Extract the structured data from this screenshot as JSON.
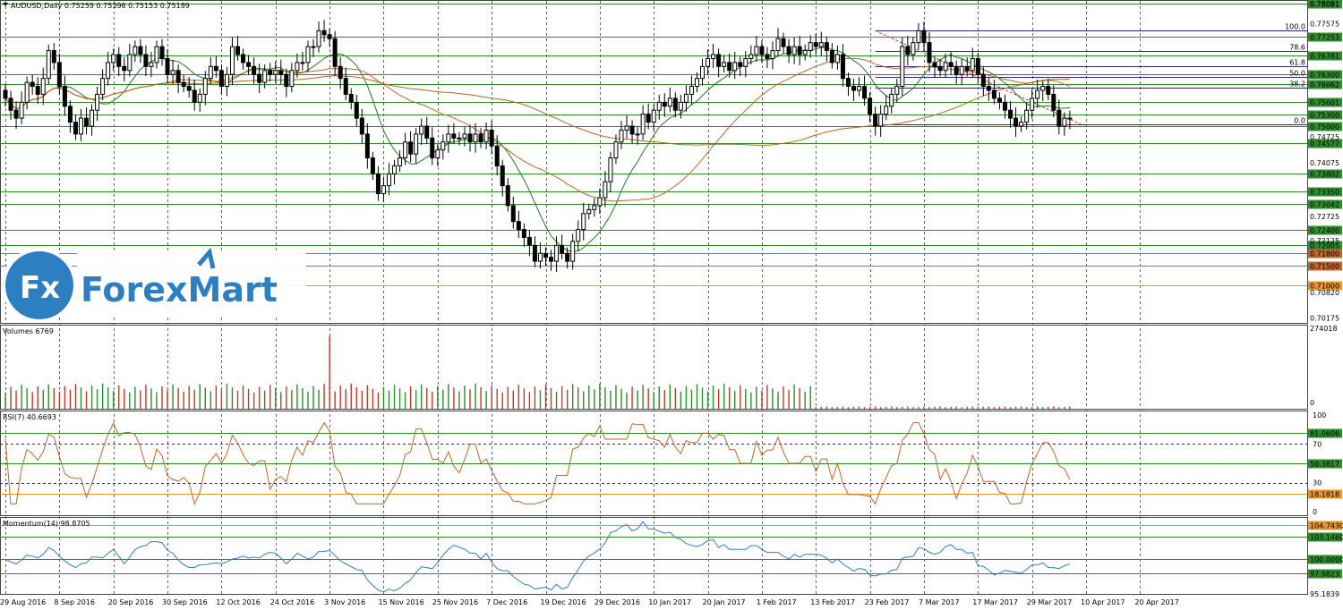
{
  "chart_data": [
    {
      "panel": "price",
      "type": "candlestick",
      "title": "AUDUSD,Daily  0.75259 0.75396 0.75153 0.75189",
      "ylim": [
        0.7005,
        0.7815
      ],
      "tick_labels": [
        "0.78081",
        "0.77575",
        "0.74725",
        "0.74075",
        "0.72725",
        "0.72125",
        "0.70820",
        "0.70175"
      ],
      "levels": [
        {
          "value": 0.78081,
          "label": "0.78081",
          "color": "#2e8b2e"
        },
        {
          "value": 0.77253,
          "label": "0.77253",
          "color": "#2e8b2e"
        },
        {
          "value": 0.76781,
          "label": "0.76781",
          "color": "#2e8b2e"
        },
        {
          "value": 0.763,
          "label": "0.76300",
          "color": "#2e8b2e"
        },
        {
          "value": 0.76062,
          "label": "0.76062",
          "color": "#2e8b2e"
        },
        {
          "value": 0.75601,
          "label": "0.75601",
          "color": "#2e8b2e"
        },
        {
          "value": 0.753,
          "label": "0.75300",
          "color": "#2e8b2e"
        },
        {
          "value": 0.75,
          "label": "0.75000",
          "color": "#2e8b2e"
        },
        {
          "value": 0.74577,
          "label": "0.74577",
          "color": "#2e8b2e"
        },
        {
          "value": 0.73802,
          "label": "0.73802",
          "color": "#2e8b2e"
        },
        {
          "value": 0.7335,
          "label": "0.73350",
          "color": "#2e8b2e"
        },
        {
          "value": 0.73042,
          "label": "0.73042",
          "color": "#2e8b2e"
        },
        {
          "value": 0.724,
          "label": "0.72400",
          "color": "#2e8b2e"
        },
        {
          "value": 0.72005,
          "label": "0.72005",
          "color": "#2e8b2e"
        },
        {
          "value": 0.718,
          "label": "0.71800",
          "color": "#c0662a"
        },
        {
          "value": 0.715,
          "label": "0.71500",
          "color": "#c0662a"
        },
        {
          "value": 0.71,
          "label": "0.71000",
          "color": "#e8962a"
        }
      ],
      "fibonacci": [
        {
          "label": "100.0",
          "value": 0.774
        },
        {
          "label": "78.6",
          "value": 0.7688
        },
        {
          "label": "61.8",
          "value": 0.7651
        },
        {
          "label": "50.0",
          "value": 0.7623
        },
        {
          "label": "38.2",
          "value": 0.7596
        },
        {
          "label": "0.0",
          "value": 0.7505
        }
      ],
      "closes": [
        0.757,
        0.754,
        0.752,
        0.756,
        0.761,
        0.76,
        0.758,
        0.762,
        0.769,
        0.766,
        0.76,
        0.755,
        0.751,
        0.748,
        0.752,
        0.75,
        0.754,
        0.758,
        0.762,
        0.766,
        0.768,
        0.765,
        0.764,
        0.768,
        0.77,
        0.768,
        0.765,
        0.766,
        0.77,
        0.767,
        0.763,
        0.764,
        0.761,
        0.76,
        0.759,
        0.756,
        0.758,
        0.762,
        0.765,
        0.764,
        0.76,
        0.763,
        0.77,
        0.768,
        0.766,
        0.765,
        0.763,
        0.761,
        0.764,
        0.763,
        0.764,
        0.763,
        0.76,
        0.764,
        0.766,
        0.766,
        0.77,
        0.77,
        0.774,
        0.773,
        0.772,
        0.765,
        0.762,
        0.758,
        0.756,
        0.752,
        0.748,
        0.742,
        0.738,
        0.733,
        0.735,
        0.738,
        0.74,
        0.742,
        0.746,
        0.743,
        0.748,
        0.75,
        0.747,
        0.742,
        0.744,
        0.746,
        0.748,
        0.747,
        0.747,
        0.748,
        0.746,
        0.748,
        0.746,
        0.749,
        0.745,
        0.74,
        0.735,
        0.73,
        0.726,
        0.724,
        0.722,
        0.72,
        0.716,
        0.718,
        0.717,
        0.716,
        0.72,
        0.718,
        0.716,
        0.721,
        0.724,
        0.728,
        0.729,
        0.73,
        0.732,
        0.736,
        0.742,
        0.746,
        0.749,
        0.75,
        0.748,
        0.748,
        0.753,
        0.751,
        0.754,
        0.756,
        0.755,
        0.757,
        0.754,
        0.756,
        0.758,
        0.76,
        0.762,
        0.765,
        0.767,
        0.768,
        0.765,
        0.766,
        0.764,
        0.766,
        0.765,
        0.767,
        0.768,
        0.77,
        0.768,
        0.767,
        0.769,
        0.772,
        0.77,
        0.768,
        0.77,
        0.768,
        0.769,
        0.771,
        0.77,
        0.771,
        0.769,
        0.766,
        0.768,
        0.762,
        0.76,
        0.759,
        0.76,
        0.757,
        0.753,
        0.75,
        0.753,
        0.755,
        0.758,
        0.76,
        0.77,
        0.768,
        0.771,
        0.774,
        0.771,
        0.766,
        0.765,
        0.764,
        0.766,
        0.765,
        0.763,
        0.765,
        0.764,
        0.767,
        0.763,
        0.76,
        0.759,
        0.757,
        0.756,
        0.754,
        0.752,
        0.75,
        0.751,
        0.754,
        0.757,
        0.759,
        0.76,
        0.758,
        0.754,
        0.75,
        0.752,
        0.7519
      ]
    },
    {
      "panel": "volumes",
      "type": "bar",
      "title": "Volumes 6769",
      "ylim": [
        0,
        274018
      ],
      "tick_labels": [
        "274018",
        "0"
      ]
    },
    {
      "panel": "rsi",
      "type": "line",
      "title": "RSI(7) 40.6693",
      "ylim": [
        0,
        100
      ],
      "tick_labels": [
        "100",
        "70",
        "30",
        "0"
      ],
      "levels": [
        {
          "value": 81.0606,
          "label": "81.0606",
          "color": "#2e8b2e"
        },
        {
          "value": 50.3817,
          "label": "50.3817",
          "color": "#2e8b2e"
        },
        {
          "value": 18.1818,
          "label": "18.1818",
          "color": "#e8962a"
        }
      ]
    },
    {
      "panel": "momentum",
      "type": "line",
      "title": "Momentum(14) 98.8705",
      "ylim": [
        95.1839,
        105.6839
      ],
      "tick_labels": [
        "95.1839"
      ],
      "levels": [
        {
          "value": 104.743,
          "label": "104.7430",
          "color": "#e8962a"
        },
        {
          "value": 103.146,
          "label": "103.1460",
          "color": "#2e8b2e"
        },
        {
          "value": 100.0,
          "label": "100.0000",
          "color": "#2e8b2e"
        },
        {
          "value": 97.9823,
          "label": "97.9823",
          "color": "#2e8b2e"
        }
      ]
    }
  ],
  "x_axis": {
    "labels": [
      "29 Aug 2016",
      "8 Sep 2016",
      "20 Sep 2016",
      "30 Sep 2016",
      "12 Oct 2016",
      "24 Oct 2016",
      "3 Nov 2016",
      "15 Nov 2016",
      "25 Nov 2016",
      "7 Dec 2016",
      "19 Dec 2016",
      "29 Dec 2016",
      "10 Jan 2017",
      "20 Jan 2017",
      "1 Feb 2017",
      "13 Feb 2017",
      "23 Feb 2017",
      "7 Mar 2017",
      "17 Mar 2017",
      "29 Mar 2017",
      "10 Apr 2017",
      "20 Apr 2017"
    ]
  },
  "logo": {
    "text": "ForexMart",
    "mark": "fx-logo-icon"
  },
  "colors": {
    "bull": "#2e8b2e",
    "bear": "#c0392b",
    "ma_fast": "#1f7a1f",
    "ma_mid": "#c0662a",
    "ma_slow": "#b5651d",
    "rsi": "#c0662a",
    "momentum": "#2d7fc1"
  }
}
